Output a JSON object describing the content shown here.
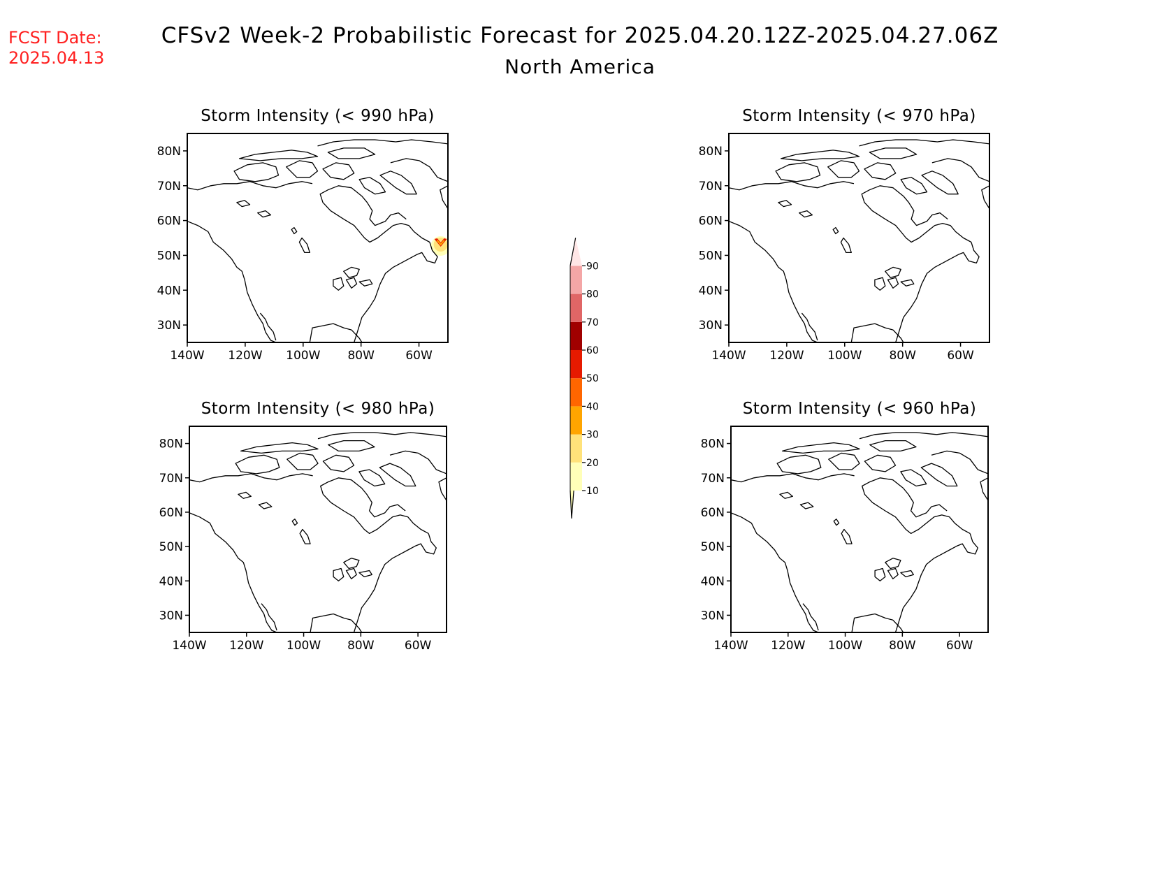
{
  "fcst": {
    "label": "FCST Date:",
    "date": "2025.04.13",
    "color": "#ff2020"
  },
  "title": {
    "main": "CFSv2 Week-2 Probabilistic Forecast for 2025.04.20.12Z-2025.04.27.06Z",
    "region": "North America"
  },
  "axes": {
    "lat_labels": [
      "80N",
      "70N",
      "60N",
      "50N",
      "40N",
      "30N"
    ],
    "lat_values": [
      80,
      70,
      60,
      50,
      40,
      30
    ],
    "lon_labels": [
      "140W",
      "120W",
      "100W",
      "80W",
      "60W"
    ],
    "lon_values": [
      -140,
      -120,
      -100,
      -80,
      -60
    ],
    "lon_range": [
      -140,
      -50
    ],
    "lat_range": [
      25,
      85
    ]
  },
  "panels": [
    {
      "id": "p990",
      "title": "Storm Intensity (< 990 hPa)",
      "hotspots": [
        {
          "lon": -52.5,
          "lat": 53.5,
          "value": 40
        }
      ]
    },
    {
      "id": "p970",
      "title": "Storm Intensity (< 970 hPa)",
      "hotspots": []
    },
    {
      "id": "p980",
      "title": "Storm Intensity (< 980 hPa)",
      "hotspots": []
    },
    {
      "id": "p960",
      "title": "Storm Intensity (< 960 hPa)",
      "hotspots": []
    }
  ],
  "colorbar": {
    "labels": [
      "10",
      "20",
      "30",
      "40",
      "50",
      "60",
      "70",
      "80",
      "90"
    ],
    "colors": [
      "#ffffb8",
      "#ffe27a",
      "#ffa500",
      "#ff6600",
      "#e61a00",
      "#a00000",
      "#e06666",
      "#f4a6a6",
      "#ffe6e6"
    ]
  }
}
